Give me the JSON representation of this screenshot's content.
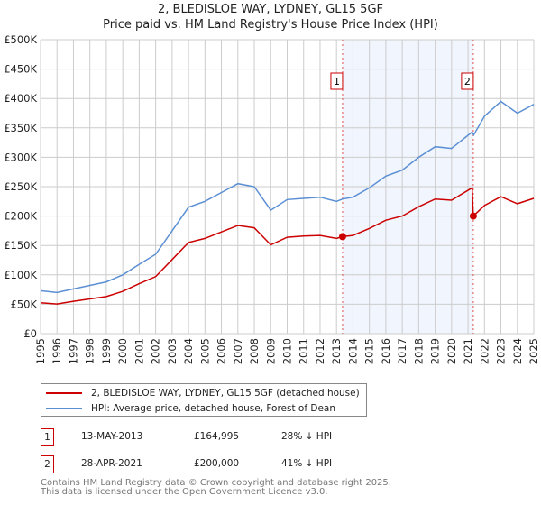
{
  "chart_data": {
    "type": "line",
    "title": "2, BLEDISLOE WAY, LYDNEY, GL15 5GF",
    "subtitle": "Price paid vs. HM Land Registry's House Price Index (HPI)",
    "xlim": [
      1995,
      2025
    ],
    "ylim": [
      0,
      500000
    ],
    "x_ticks": [
      "1995",
      "1996",
      "1997",
      "1998",
      "1999",
      "2000",
      "2001",
      "2002",
      "2003",
      "2004",
      "2005",
      "2006",
      "2007",
      "2008",
      "2009",
      "2010",
      "2011",
      "2012",
      "2013",
      "2014",
      "2015",
      "2016",
      "2017",
      "2018",
      "2019",
      "2020",
      "2021",
      "2022",
      "2023",
      "2024",
      "2025"
    ],
    "y_ticks": [
      {
        "v": 0,
        "l": "£0"
      },
      {
        "v": 50000,
        "l": "£50K"
      },
      {
        "v": 100000,
        "l": "£100K"
      },
      {
        "v": 150000,
        "l": "£150K"
      },
      {
        "v": 200000,
        "l": "£200K"
      },
      {
        "v": 250000,
        "l": "£250K"
      },
      {
        "v": 300000,
        "l": "£300K"
      },
      {
        "v": 350000,
        "l": "£350K"
      },
      {
        "v": 400000,
        "l": "£400K"
      },
      {
        "v": 450000,
        "l": "£450K"
      },
      {
        "v": 500000,
        "l": "£500K"
      }
    ],
    "series": [
      {
        "name": "2, BLEDISLOE WAY, LYDNEY, GL15 5GF (detached house)",
        "color": "#cc0000",
        "x": [
          1995,
          1996,
          1997,
          1998,
          1999,
          2000,
          2001,
          2002,
          2003,
          2004,
          2005,
          2006,
          2007,
          2008,
          2009,
          2010,
          2011,
          2012,
          2013,
          2013.37,
          2014,
          2015,
          2016,
          2017,
          2018,
          2019,
          2020,
          2021.25,
          2021.32,
          2022,
          2023,
          2024,
          2025
        ],
        "y": [
          52500,
          50500,
          55000,
          59000,
          63000,
          72000,
          85000,
          97000,
          126000,
          155000,
          162000,
          173000,
          184000,
          180000,
          151000,
          164000,
          166000,
          167000,
          162000,
          164995,
          167000,
          179000,
          193000,
          200000,
          216000,
          229000,
          227000,
          248000,
          200000,
          218000,
          233000,
          221000,
          230000
        ]
      },
      {
        "name": "HPI: Average price, detached house, Forest of Dean",
        "color": "#5b8fd4",
        "x": [
          1995,
          1996,
          1997,
          1998,
          1999,
          2000,
          2001,
          2002,
          2003,
          2004,
          2005,
          2006,
          2007,
          2008,
          2009,
          2010,
          2011,
          2012,
          2013,
          2013.37,
          2014,
          2015,
          2016,
          2017,
          2018,
          2019,
          2020,
          2021.25,
          2021.35,
          2022,
          2023,
          2024,
          2025
        ],
        "y": [
          73000,
          70000,
          76000,
          82000,
          88000,
          100000,
          118000,
          135000,
          175000,
          215000,
          225000,
          240000,
          255000,
          250000,
          210000,
          228000,
          230000,
          232000,
          225000,
          229000,
          232000,
          248000,
          268000,
          278000,
          300000,
          318000,
          315000,
          343000,
          338000,
          370000,
          395000,
          375000,
          390000
        ]
      }
    ],
    "shaded_range": [
      2013.37,
      2021.32
    ],
    "markers": [
      {
        "label": "1",
        "x": 2013.37,
        "y": 164995
      },
      {
        "label": "2",
        "x": 2021.32,
        "y": 200000
      }
    ]
  },
  "legend": {
    "red": "2, BLEDISLOE WAY, LYDNEY, GL15 5GF (detached house)",
    "blue": "HPI: Average price, detached house, Forest of Dean"
  },
  "transactions": [
    {
      "num": "1",
      "date": "13-MAY-2013",
      "price": "£164,995",
      "hpi": "28% ↓ HPI"
    },
    {
      "num": "2",
      "date": "28-APR-2021",
      "price": "£200,000",
      "hpi": "41% ↓ HPI"
    }
  ],
  "footer": {
    "line1": "Contains HM Land Registry data © Crown copyright and database right 2025.",
    "line2": "This data is licensed under the Open Government Licence v3.0."
  }
}
